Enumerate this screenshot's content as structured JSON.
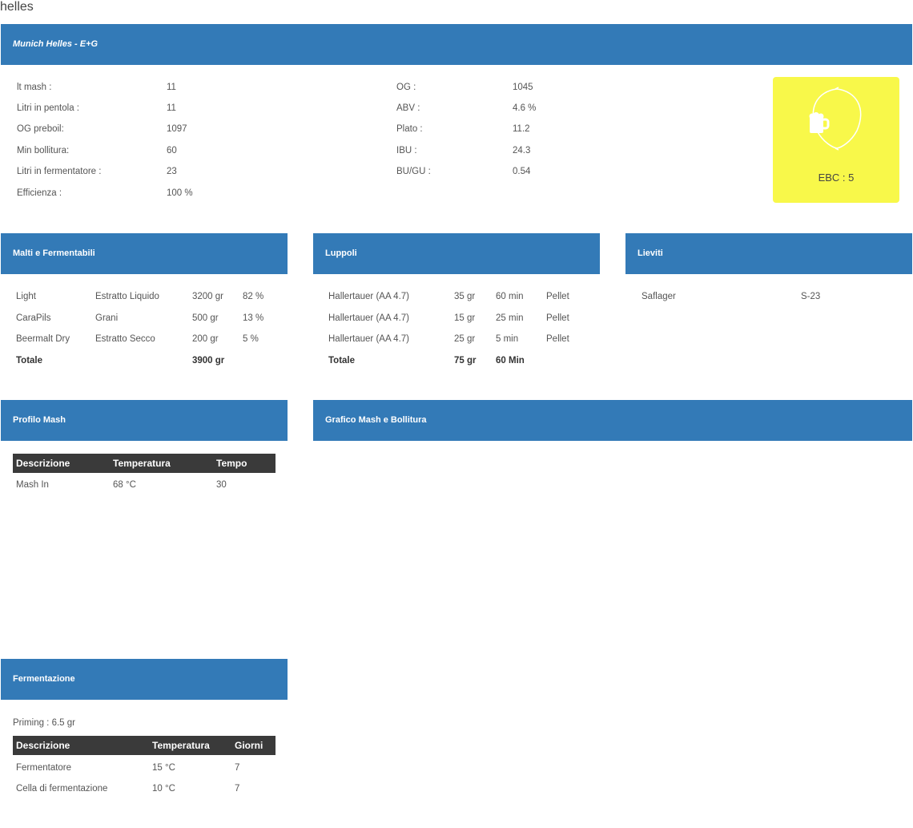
{
  "page_title": "helles",
  "recipe": {
    "title": "Munich Helles - E+G",
    "left_labels": [
      "lt mash :",
      "Litri in pentola :",
      "OG preboil:",
      "Min bollitura:",
      "Litri in fermentatore :",
      "Efficienza :"
    ],
    "left_values": [
      "11",
      "11",
      "1097",
      "60",
      "23",
      "100 %"
    ],
    "right_labels": [
      "OG :",
      "ABV :",
      "Plato :",
      "IBU :",
      "BU/GU :"
    ],
    "right_values": [
      "1045",
      "4.6 %",
      "11.2",
      "24.3",
      "0.54"
    ],
    "ebc_label": "EBC : 5",
    "ebc_color": "#f8f84a",
    "ebc_icon": "beer-mug-icon"
  },
  "malti": {
    "title": "Malti e Fermentabili",
    "rows": [
      {
        "name": "Light",
        "type": "Estratto Liquido",
        "qty": "3200 gr",
        "pct": "82 %"
      },
      {
        "name": "CaraPils",
        "type": "Grani",
        "qty": "500 gr",
        "pct": "13 %"
      },
      {
        "name": "Beermalt Dry",
        "type": "Estratto Secco",
        "qty": "200 gr",
        "pct": "5 %"
      }
    ],
    "total_label": "Totale",
    "total_qty": "3900 gr"
  },
  "luppoli": {
    "title": "Luppoli",
    "rows": [
      {
        "name": "Hallertauer (AA 4.7)",
        "qty": "35 gr",
        "time": "60 min",
        "form": "Pellet"
      },
      {
        "name": "Hallertauer (AA 4.7)",
        "qty": "15 gr",
        "time": "25 min",
        "form": "Pellet"
      },
      {
        "name": "Hallertauer (AA 4.7)",
        "qty": "25 gr",
        "time": "5 min",
        "form": "Pellet"
      }
    ],
    "total_label": "Totale",
    "total_qty": "75 gr",
    "total_time": "60 Min"
  },
  "lieviti": {
    "title": "Lieviti",
    "rows": [
      {
        "name": "Saflager",
        "code": "S-23"
      }
    ]
  },
  "mash": {
    "title": "Profilo Mash",
    "headers": [
      "Descrizione",
      "Temperatura",
      "Tempo"
    ],
    "rows": [
      {
        "desc": "Mash In",
        "temp": "68 °C",
        "time": "30"
      }
    ]
  },
  "grafico": {
    "title": "Grafico Mash e Bollitura"
  },
  "fermentazione": {
    "title": "Fermentazione",
    "priming": "Priming : 6.5 gr",
    "headers": [
      "Descrizione",
      "Temperatura",
      "Giorni"
    ],
    "rows": [
      {
        "desc": "Fermentatore",
        "temp": "15 °C",
        "days": "7"
      },
      {
        "desc": "Cella di fermentazione",
        "temp": "10 °C",
        "days": "7"
      }
    ]
  },
  "colors": {
    "header_blue": "#337ab7",
    "table_head_dark": "#3a3a3a",
    "ebc_yellow": "#f8f84a"
  }
}
